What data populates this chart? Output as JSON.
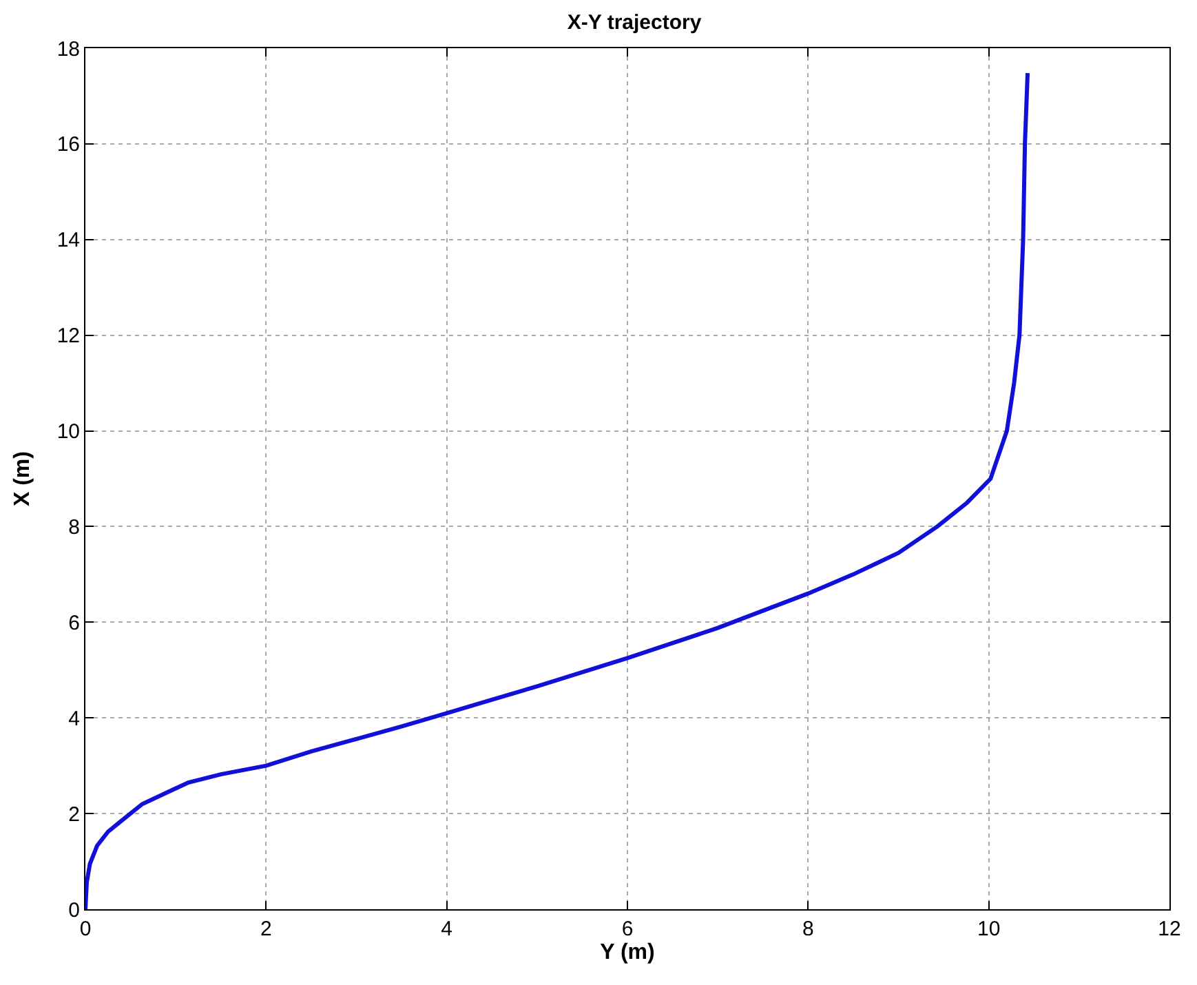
{
  "chart_data": {
    "type": "line",
    "title": "X-Y trajectory",
    "xlabel": "Y (m)",
    "ylabel": "X (m)",
    "series": [
      {
        "color": "#1010d8",
        "x": [
          0,
          0.015,
          0.05,
          0.13,
          0.25,
          0.38,
          0.63,
          1.14,
          1.5,
          2,
          2.5,
          3,
          3.5,
          4,
          5,
          6,
          7,
          8,
          8.5,
          9,
          9.43,
          9.76,
          10.02,
          10.2,
          10.28,
          10.34,
          10.38,
          10.4,
          10.43
        ],
        "values": [
          0,
          0.56,
          0.95,
          1.33,
          1.62,
          1.82,
          2.2,
          2.65,
          2.82,
          3.0,
          3.3,
          3.56,
          3.82,
          4.1,
          4.66,
          5.25,
          5.88,
          6.6,
          7.0,
          7.45,
          8,
          8.5,
          9,
          10,
          11,
          12,
          14,
          16,
          17.48
        ]
      }
    ],
    "xlim": [
      0,
      12
    ],
    "xticks": [
      0,
      2,
      4,
      6,
      8,
      10,
      12
    ],
    "ylim": [
      0,
      18
    ],
    "yticks": [
      0,
      2,
      4,
      6,
      8,
      10,
      12,
      14,
      16,
      18
    ],
    "grid": true,
    "line_style": "solid",
    "marker": "none"
  }
}
